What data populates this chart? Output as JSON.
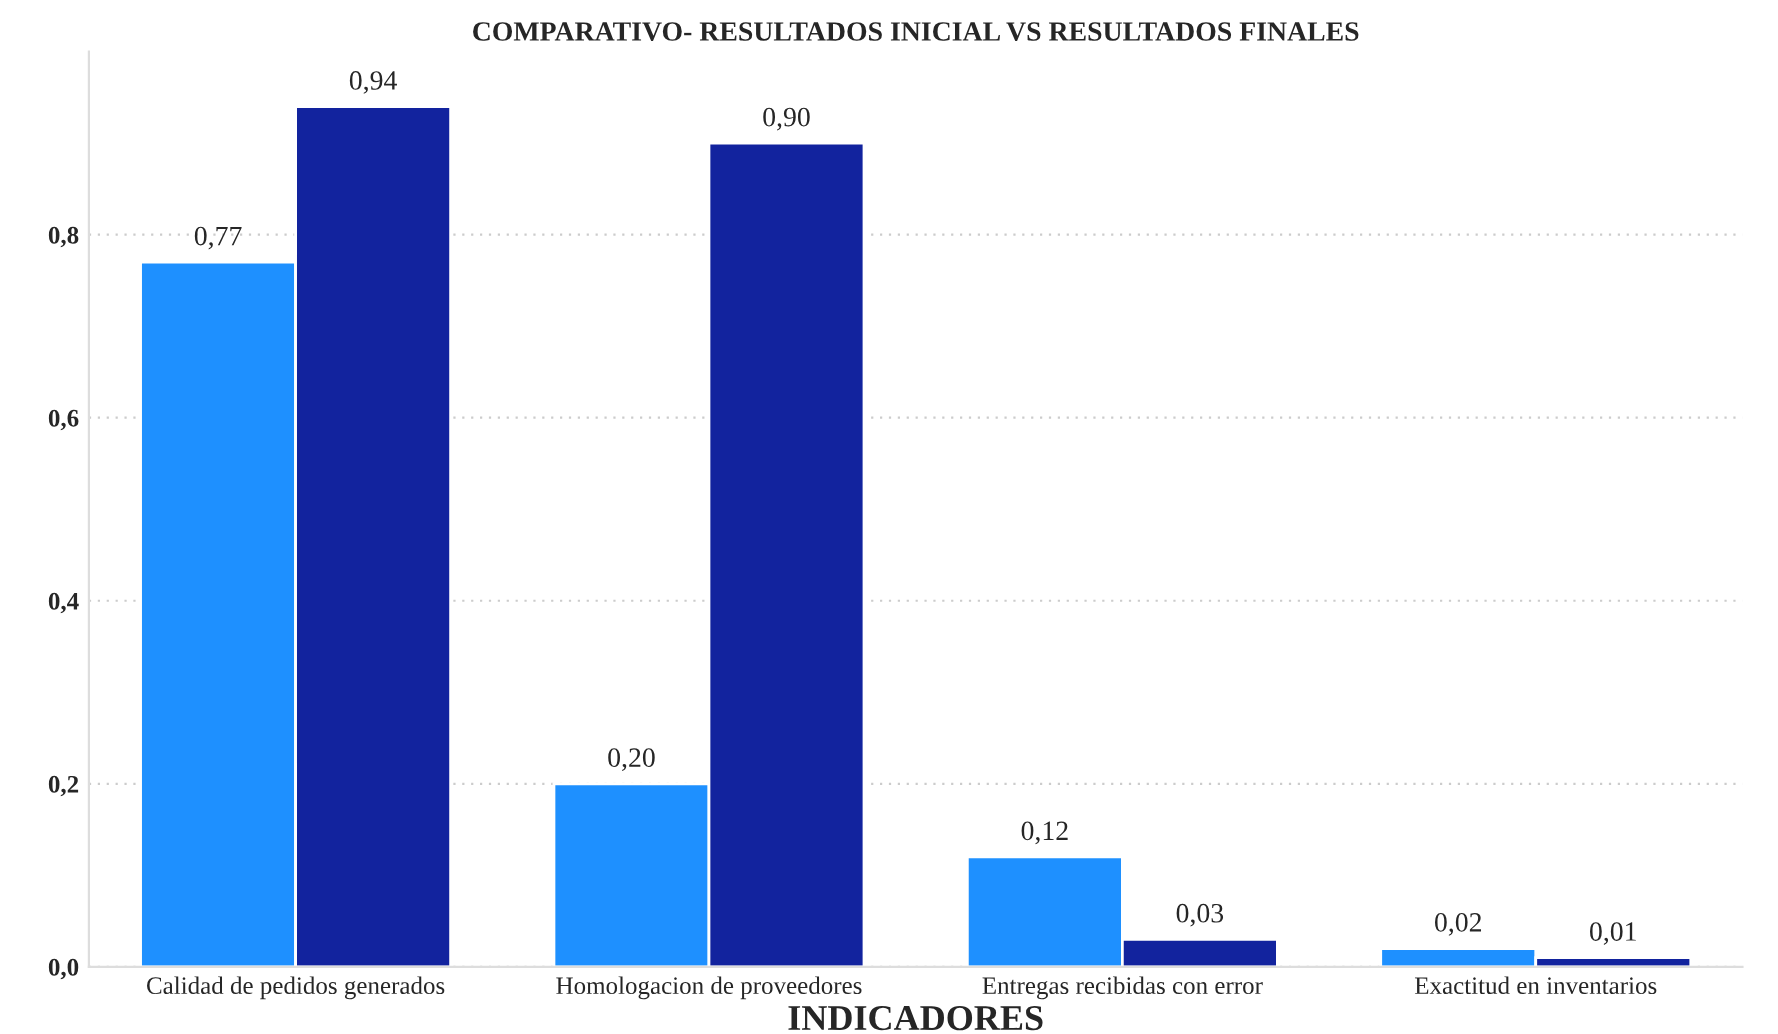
{
  "chart_data": {
    "type": "bar",
    "title": "COMPARATIVO- RESULTADOS INICIAL VS RESULTADOS FINALES",
    "xlabel": "INDICADORES",
    "categories": [
      "Calidad de pedidos generados",
      "Homologacion de proveedores",
      "Entregas recibidas con error",
      "Exactitud en inventarios"
    ],
    "series": [
      {
        "color": "#1e90ff",
        "values": [
          0.77,
          0.2,
          0.12,
          0.02
        ],
        "value_labels": [
          "0,77",
          "0,20",
          "0,12",
          "0,02"
        ]
      },
      {
        "color": "#12239e",
        "values": [
          0.94,
          0.9,
          0.03,
          0.01
        ],
        "value_labels": [
          "0,94",
          "0,90",
          "0,03",
          "0,01"
        ]
      }
    ],
    "ylim": [
      0,
      1.0
    ],
    "yticks": [
      {
        "value": 0,
        "label": "0,0"
      },
      {
        "value": 0.2,
        "label": "0,2"
      },
      {
        "value": 0.4,
        "label": "0,4"
      },
      {
        "value": 0.6,
        "label": "0,6"
      },
      {
        "value": 0.8,
        "label": "0,8"
      }
    ],
    "grid": "y",
    "legend": false
  }
}
